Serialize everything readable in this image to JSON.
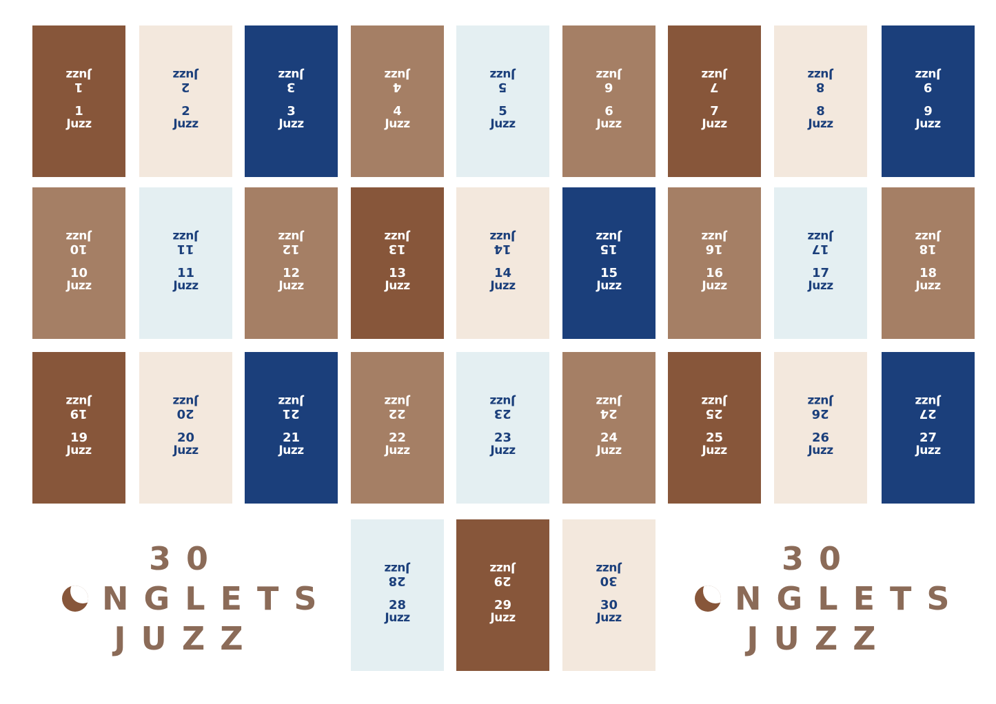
{
  "palette": {
    "dark_brown": "#87563A",
    "tan": "#A57F65",
    "navy": "#1B3F7B",
    "cream": "#F3E8DD",
    "pale_blue": "#E4EFF2",
    "title_color": "#8B6B58"
  },
  "card_label": "Juzz",
  "cards": [
    {
      "number": "1",
      "color": "dark_brown"
    },
    {
      "number": "2",
      "color": "cream"
    },
    {
      "number": "3",
      "color": "navy"
    },
    {
      "number": "4",
      "color": "tan"
    },
    {
      "number": "5",
      "color": "pale_blue"
    },
    {
      "number": "6",
      "color": "tan"
    },
    {
      "number": "7",
      "color": "dark_brown"
    },
    {
      "number": "8",
      "color": "cream"
    },
    {
      "number": "9",
      "color": "navy"
    },
    {
      "number": "10",
      "color": "tan"
    },
    {
      "number": "11",
      "color": "pale_blue"
    },
    {
      "number": "12",
      "color": "tan"
    },
    {
      "number": "13",
      "color": "dark_brown"
    },
    {
      "number": "14",
      "color": "cream"
    },
    {
      "number": "15",
      "color": "navy"
    },
    {
      "number": "16",
      "color": "tan"
    },
    {
      "number": "17",
      "color": "pale_blue"
    },
    {
      "number": "18",
      "color": "tan"
    },
    {
      "number": "19",
      "color": "dark_brown"
    },
    {
      "number": "20",
      "color": "cream"
    },
    {
      "number": "21",
      "color": "navy"
    },
    {
      "number": "22",
      "color": "tan"
    },
    {
      "number": "23",
      "color": "pale_blue"
    },
    {
      "number": "24",
      "color": "tan"
    },
    {
      "number": "25",
      "color": "dark_brown"
    },
    {
      "number": "26",
      "color": "cream"
    },
    {
      "number": "27",
      "color": "navy"
    },
    {
      "number": "28",
      "color": "pale_blue"
    },
    {
      "number": "29",
      "color": "dark_brown"
    },
    {
      "number": "30",
      "color": "cream"
    }
  ],
  "title": {
    "line1": "30",
    "line2_icon": "crescent-moon-icon",
    "line2": "NGLETS",
    "line3": "JUZZ"
  }
}
